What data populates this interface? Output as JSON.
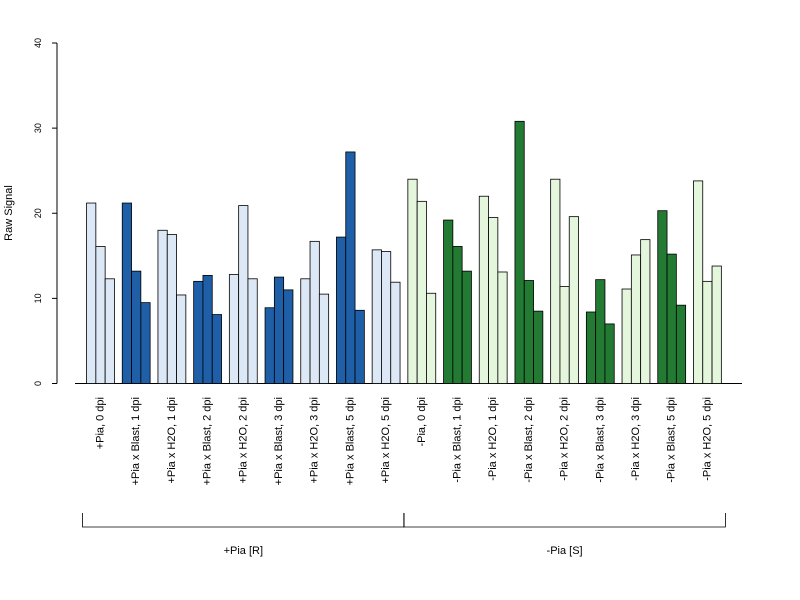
{
  "chart_data": {
    "type": "bar",
    "ylabel": "Raw Signal",
    "ylim": [
      0,
      40
    ],
    "yticks": [
      0,
      10,
      20,
      30,
      40
    ],
    "colors": {
      "pia_light": "#dce8f6",
      "pia_dark": "#1f5fa8",
      "nopia_light": "#e4f6dc",
      "nopia_dark": "#237a33",
      "outline": "#000000"
    },
    "categories": [
      "+Pia, 0 dpi",
      "+Pia x Blast, 1 dpi",
      "+Pia x H2O, 1 dpi",
      "+Pia x Blast, 2 dpi",
      "+Pia x H2O, 2 dpi",
      "+Pia x Blast, 3 dpi",
      "+Pia x H2O, 3 dpi",
      "+Pia x Blast, 5 dpi",
      "+Pia x H2O, 5 dpi",
      "-Pia, 0 dpi",
      "-Pia x Blast, 1 dpi",
      "-Pia x H2O, 1 dpi",
      "-Pia x Blast, 2 dpi",
      "-Pia x H2O, 2 dpi",
      "-Pia x Blast, 3 dpi",
      "-Pia x H2O, 3 dpi",
      "-Pia x Blast, 5 dpi",
      "-Pia x H2O, 5 dpi"
    ],
    "fills": [
      "pia_light",
      "pia_dark",
      "pia_light",
      "pia_dark",
      "pia_light",
      "pia_dark",
      "pia_light",
      "pia_dark",
      "pia_light",
      "nopia_light",
      "nopia_dark",
      "nopia_light",
      "nopia_dark",
      "nopia_light",
      "nopia_dark",
      "nopia_light",
      "nopia_dark",
      "nopia_light"
    ],
    "values": [
      [
        21.2,
        16.1,
        12.3
      ],
      [
        21.2,
        13.2,
        9.5
      ],
      [
        18.0,
        17.5,
        10.4
      ],
      [
        12.0,
        12.7,
        8.1
      ],
      [
        12.8,
        20.9,
        12.3
      ],
      [
        8.9,
        12.5,
        11.0
      ],
      [
        12.3,
        16.7,
        10.5
      ],
      [
        17.2,
        27.2,
        8.6
      ],
      [
        15.7,
        15.5,
        11.9
      ],
      [
        24.0,
        21.4,
        10.6
      ],
      [
        19.2,
        16.1,
        13.2
      ],
      [
        22.0,
        19.5,
        13.1
      ],
      [
        30.8,
        12.1,
        8.5
      ],
      [
        24.0,
        11.4,
        19.6
      ],
      [
        8.4,
        12.2,
        7.0
      ],
      [
        11.1,
        15.1,
        16.9
      ],
      [
        20.3,
        15.2,
        9.2
      ],
      [
        23.8,
        12.0,
        13.8
      ]
    ],
    "groups": [
      {
        "label": "+Pia [R]",
        "from": 0,
        "to": 8
      },
      {
        "label": "-Pia [S]",
        "from": 9,
        "to": 17
      }
    ]
  }
}
